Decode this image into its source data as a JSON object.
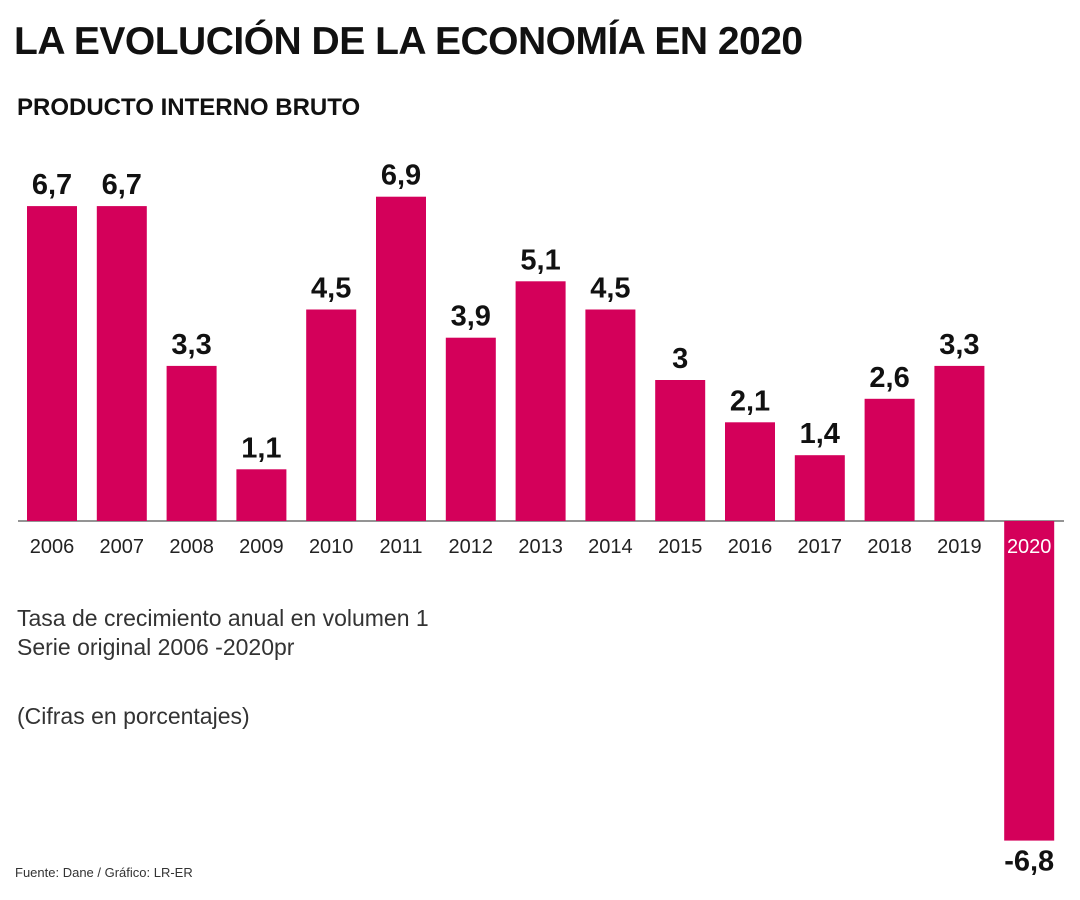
{
  "header": {
    "title": "LA EVOLUCIÓN DE LA ECONOMÍA EN 2020",
    "subtitle": "PRODUCTO INTERNO BRUTO"
  },
  "notes": {
    "line1": "Tasa de crecimiento anual en volumen 1",
    "line2": "Serie original 2006 -2020pr",
    "line3": "(Cifras en porcentajes)"
  },
  "footer": {
    "source": "Fuente: Dane / Gráfico: LR-ER"
  },
  "colors": {
    "bar": "#d4005a",
    "baseline": "#555555",
    "highlight_label": "#ffffff"
  },
  "chart_data": {
    "type": "bar",
    "title": "LA EVOLUCIÓN DE LA ECONOMÍA EN 2020",
    "subtitle": "PRODUCTO INTERNO BRUTO",
    "categories": [
      "2006",
      "2007",
      "2008",
      "2009",
      "2010",
      "2011",
      "2012",
      "2013",
      "2014",
      "2015",
      "2016",
      "2017",
      "2018",
      "2019",
      "2020"
    ],
    "values": [
      6.7,
      6.7,
      3.3,
      1.1,
      4.5,
      6.9,
      3.9,
      5.1,
      4.5,
      3,
      2.1,
      1.4,
      2.6,
      3.3,
      -6.8
    ],
    "value_labels": [
      "6,7",
      "6,7",
      "3,3",
      "1,1",
      "4,5",
      "6,9",
      "3,9",
      "5,1",
      "4,5",
      "3",
      "2,1",
      "1,4",
      "2,6",
      "3,3",
      "-6,8"
    ],
    "xlabel": "",
    "ylabel": "",
    "ylim": [
      -6.8,
      6.9
    ],
    "grid": false,
    "legend": "none"
  }
}
